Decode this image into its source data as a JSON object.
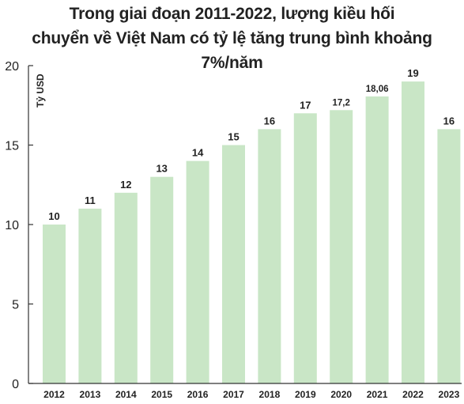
{
  "chart_data": {
    "type": "bar",
    "title_line1": "Trong giai đoạn 2011-2022, lượng kiều hối",
    "title_line2": "chuyển về Việt Nam có tỷ lệ tăng trung bình khoảng 7%/năm",
    "ylabel": "Tỷ USD",
    "xlabel": "",
    "ylim": [
      0,
      20
    ],
    "yticks": [
      {
        "value": 0,
        "label": "0"
      },
      {
        "value": 5,
        "label": "5"
      },
      {
        "value": 10,
        "label": "10"
      },
      {
        "value": 15,
        "label": "15"
      },
      {
        "value": 20,
        "label": "20"
      }
    ],
    "categories": [
      "2012",
      "2013",
      "2014",
      "2015",
      "2016",
      "2017",
      "2018",
      "2019",
      "2020",
      "2021",
      "2022",
      "2023"
    ],
    "values": [
      10,
      11,
      12,
      13,
      14,
      15,
      16,
      17,
      17.2,
      18.06,
      19,
      16
    ],
    "data_labels": [
      "10",
      "11",
      "12",
      "13",
      "14",
      "15",
      "16",
      "17",
      "17,2",
      "18,06",
      "19",
      "16"
    ],
    "colors": {
      "bar": "#c9e6c6",
      "axis": "#333333",
      "text": "#222222"
    },
    "grid": false,
    "legend": "none"
  }
}
